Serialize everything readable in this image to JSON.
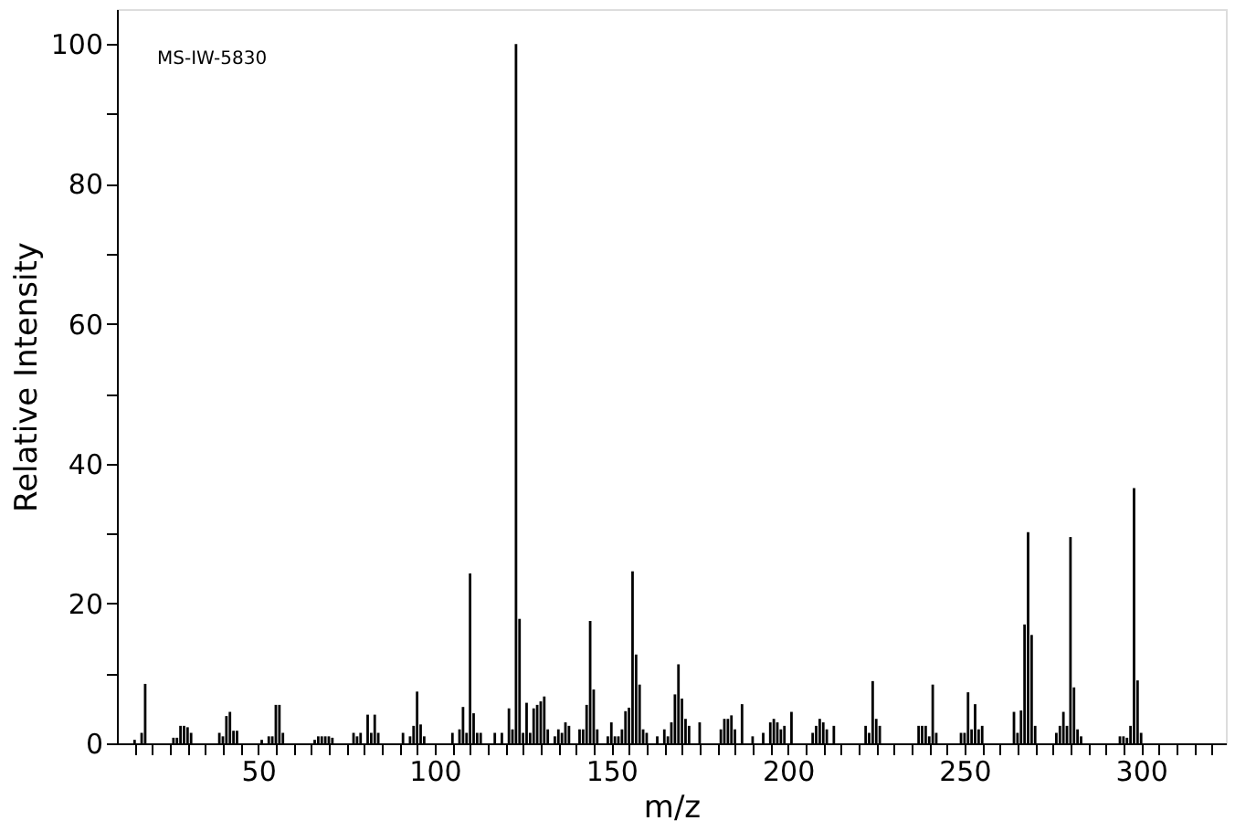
{
  "chart_data": {
    "type": "bar",
    "xlabel": "m/z",
    "ylabel": "Relative Intensity",
    "annotations": [
      "MS-IW-5830"
    ],
    "x": [
      15,
      17,
      18,
      26,
      27,
      28,
      29,
      30,
      31,
      39,
      40,
      41,
      42,
      43,
      44,
      51,
      53,
      54,
      55,
      56,
      57,
      66,
      67,
      68,
      69,
      70,
      71,
      77,
      78,
      79,
      81,
      82,
      83,
      84,
      91,
      93,
      94,
      95,
      96,
      97,
      105,
      107,
      108,
      109,
      110,
      111,
      112,
      113,
      117,
      119,
      121,
      122,
      123,
      124,
      125,
      126,
      127,
      128,
      129,
      130,
      131,
      132,
      134,
      135,
      136,
      137,
      138,
      141,
      142,
      143,
      144,
      145,
      146,
      149,
      150,
      151,
      152,
      153,
      154,
      155,
      156,
      157,
      158,
      159,
      160,
      163,
      165,
      166,
      167,
      168,
      169,
      170,
      171,
      172,
      175,
      181,
      182,
      183,
      184,
      185,
      187,
      190,
      193,
      195,
      196,
      197,
      198,
      199,
      201,
      207,
      208,
      209,
      210,
      211,
      213,
      222,
      223,
      224,
      225,
      226,
      237,
      238,
      239,
      240,
      241,
      242,
      249,
      250,
      251,
      252,
      253,
      254,
      255,
      264,
      265,
      266,
      267,
      268,
      269,
      270,
      276,
      277,
      278,
      279,
      280,
      281,
      282,
      283,
      294,
      295,
      296,
      297,
      298,
      299,
      300
    ],
    "series": [
      {
        "color": "#000000",
        "values": [
          0.5,
          1.5,
          8.5,
          0.8,
          0.8,
          2.5,
          2.5,
          2.3,
          1.5,
          1.5,
          1,
          3.9,
          4.5,
          1.8,
          1.8,
          0.5,
          1,
          1,
          5.5,
          5.5,
          1.5,
          0.5,
          1,
          1,
          1,
          1,
          0.8,
          1.5,
          1,
          1.5,
          4.1,
          1.5,
          4.1,
          1.5,
          1.5,
          1,
          2.5,
          7.4,
          2.7,
          1,
          1.5,
          2,
          5.2,
          1.5,
          24.3,
          4.3,
          1.5,
          1.5,
          1.5,
          1.5,
          5,
          2,
          100,
          17.8,
          1.5,
          5.8,
          1.5,
          5,
          5.5,
          6,
          6.7,
          2,
          1,
          2,
          1.5,
          3,
          2.5,
          2,
          2,
          5.5,
          17.5,
          7.7,
          2,
          1,
          3,
          1,
          1,
          2,
          4.6,
          5.1,
          24.6,
          12.7,
          8.4,
          2,
          1.5,
          1,
          2,
          1,
          3,
          7,
          11.3,
          6.4,
          3.5,
          2.5,
          3,
          2,
          3.5,
          3.5,
          4,
          2,
          5.6,
          1,
          1.5,
          3,
          3.5,
          3,
          2,
          2.5,
          4.5,
          1.5,
          2.5,
          3.5,
          3,
          2,
          2.5,
          2.5,
          1.5,
          8.9,
          3.5,
          2.5,
          2.5,
          2.5,
          2.5,
          1,
          8.4,
          1.5,
          1.5,
          1.5,
          7.3,
          2,
          5.6,
          2,
          2.5,
          4.5,
          1.5,
          4.7,
          17,
          30.2,
          15.5,
          2.5,
          1.5,
          2.5,
          4.5,
          2.5,
          29.5,
          8,
          2,
          1,
          1,
          1,
          0.8,
          2.5,
          36.5,
          9,
          1.5
        ]
      }
    ],
    "xlim": [
      10,
      324
    ],
    "xticks": [
      {
        "value": 15,
        "label": null
      },
      {
        "value": 20,
        "label": null
      },
      {
        "value": 25,
        "label": null
      },
      {
        "value": 30,
        "label": null
      },
      {
        "value": 35,
        "label": null
      },
      {
        "value": 40,
        "label": null
      },
      {
        "value": 45,
        "label": null
      },
      50,
      {
        "value": 55,
        "label": null
      },
      {
        "value": 60,
        "label": null
      },
      {
        "value": 65,
        "label": null
      },
      {
        "value": 70,
        "label": null
      },
      {
        "value": 75,
        "label": null
      },
      {
        "value": 80,
        "label": null
      },
      {
        "value": 85,
        "label": null
      },
      {
        "value": 90,
        "label": null
      },
      {
        "value": 95,
        "label": null
      },
      100,
      {
        "value": 105,
        "label": null
      },
      {
        "value": 110,
        "label": null
      },
      {
        "value": 115,
        "label": null
      },
      {
        "value": 120,
        "label": null
      },
      {
        "value": 125,
        "label": null
      },
      {
        "value": 130,
        "label": null
      },
      {
        "value": 135,
        "label": null
      },
      {
        "value": 140,
        "label": null
      },
      {
        "value": 145,
        "label": null
      },
      150,
      {
        "value": 155,
        "label": null
      },
      {
        "value": 160,
        "label": null
      },
      {
        "value": 165,
        "label": null
      },
      {
        "value": 170,
        "label": null
      },
      {
        "value": 175,
        "label": null
      },
      {
        "value": 180,
        "label": null
      },
      {
        "value": 185,
        "label": null
      },
      {
        "value": 190,
        "label": null
      },
      {
        "value": 195,
        "label": null
      },
      200,
      {
        "value": 205,
        "label": null
      },
      {
        "value": 210,
        "label": null
      },
      {
        "value": 215,
        "label": null
      },
      {
        "value": 220,
        "label": null
      },
      {
        "value": 225,
        "label": null
      },
      {
        "value": 230,
        "label": null
      },
      {
        "value": 235,
        "label": null
      },
      {
        "value": 240,
        "label": null
      },
      {
        "value": 245,
        "label": null
      },
      250,
      {
        "value": 255,
        "label": null
      },
      {
        "value": 260,
        "label": null
      },
      {
        "value": 265,
        "label": null
      },
      {
        "value": 270,
        "label": null
      },
      {
        "value": 275,
        "label": null
      },
      {
        "value": 280,
        "label": null
      },
      {
        "value": 285,
        "label": null
      },
      {
        "value": 290,
        "label": null
      },
      {
        "value": 295,
        "label": null
      },
      300,
      {
        "value": 305,
        "label": null
      },
      {
        "value": 310,
        "label": null
      },
      {
        "value": 315,
        "label": null
      },
      {
        "value": 320,
        "label": null
      }
    ],
    "ylim": [
      0,
      105
    ],
    "yticks": [
      0,
      {
        "value": 10,
        "label": null
      },
      20,
      {
        "value": 30,
        "label": null
      },
      40,
      {
        "value": 50,
        "label": null
      },
      60,
      {
        "value": 70,
        "label": null
      },
      80,
      {
        "value": 90,
        "label": null
      },
      100
    ],
    "grid": false
  }
}
